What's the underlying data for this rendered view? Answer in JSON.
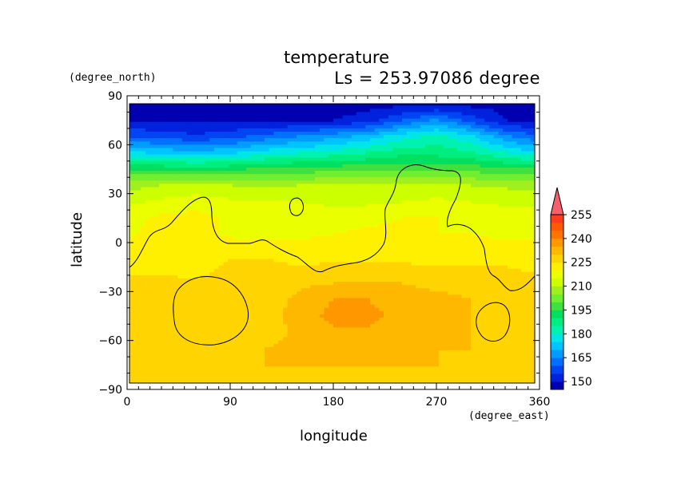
{
  "chart_data": {
    "type": "heatmap",
    "title": "temperature",
    "subtitle": "Ls = 253.97086 degree",
    "xlabel": "longitude",
    "ylabel": "latitude",
    "x_unit": "(degree_east)",
    "y_unit": "(degree_north)",
    "xlim": [
      0,
      360
    ],
    "ylim": [
      -90,
      90
    ],
    "x_ticks": [
      "0",
      "90",
      "180",
      "270",
      "360"
    ],
    "y_ticks": [
      "90",
      "60",
      "30",
      "0",
      "−30",
      "−60",
      "−90"
    ],
    "colorbar": {
      "levels": [
        145,
        150,
        155,
        160,
        165,
        170,
        175,
        180,
        185,
        190,
        195,
        200,
        205,
        210,
        215,
        220,
        225,
        230,
        235,
        240,
        245,
        250,
        255,
        260
      ],
      "labels": [
        "150",
        "165",
        "180",
        "195",
        "210",
        "225",
        "240",
        "255"
      ],
      "colors": [
        "#0000b0",
        "#0022dd",
        "#0044f2",
        "#0070ff",
        "#009cff",
        "#00c4ff",
        "#00e6e6",
        "#00f2b0",
        "#00ee80",
        "#00e060",
        "#40e040",
        "#70ee30",
        "#a0f020",
        "#ccff00",
        "#eaff00",
        "#fff000",
        "#ffd400",
        "#ffb800",
        "#ff9800",
        "#ff7400",
        "#ff5a00",
        "#ff3c1e",
        "#f5606a"
      ],
      "extend": "max"
    },
    "temperature_grid_K": {
      "latitudes": [
        85,
        75,
        65,
        55,
        45,
        35,
        25,
        15,
        5,
        -5,
        -15,
        -25,
        -35,
        -45,
        -55,
        -65,
        -75,
        -85
      ],
      "longitudes": [
        0,
        30,
        60,
        90,
        120,
        150,
        180,
        210,
        240,
        270,
        300,
        330,
        360
      ],
      "rows": [
        [
          148,
          148,
          148,
          148,
          148,
          148,
          148,
          148,
          148,
          148,
          148,
          148,
          148
        ],
        [
          149,
          149,
          149,
          149,
          149,
          149,
          150,
          152,
          160,
          166,
          158,
          150,
          149
        ],
        [
          160,
          158,
          156,
          158,
          162,
          165,
          168,
          172,
          178,
          182,
          176,
          166,
          160
        ],
        [
          176,
          174,
          172,
          174,
          178,
          180,
          182,
          185,
          188,
          188,
          186,
          180,
          176
        ],
        [
          195,
          194,
          193,
          194,
          196,
          197,
          198,
          198,
          199,
          199,
          198,
          196,
          195
        ],
        [
          208,
          210,
          211,
          210,
          209,
          210,
          210,
          210,
          211,
          212,
          210,
          209,
          208
        ],
        [
          214,
          216,
          218,
          216,
          215,
          215,
          214,
          214,
          215,
          216,
          215,
          214,
          214
        ],
        [
          218,
          221,
          222,
          219,
          218,
          218,
          218,
          219,
          220,
          220,
          219,
          218,
          218
        ],
        [
          219,
          222,
          222,
          219,
          218,
          219,
          220,
          221,
          221,
          220,
          220,
          219,
          219
        ],
        [
          222,
          222,
          221,
          224,
          224,
          223,
          222,
          222,
          222,
          222,
          222,
          222,
          222
        ],
        [
          224,
          224,
          223,
          226,
          226,
          225,
          226,
          226,
          226,
          225,
          225,
          225,
          224
        ],
        [
          226,
          226,
          226,
          226,
          227,
          229,
          230,
          230,
          230,
          229,
          229,
          228,
          226
        ],
        [
          226,
          226,
          226,
          227,
          228,
          231,
          235,
          235,
          232,
          231,
          230,
          229,
          226
        ],
        [
          226,
          226,
          226,
          227,
          229,
          231,
          237,
          237,
          233,
          231,
          230,
          229,
          226
        ],
        [
          226,
          226,
          226,
          226,
          228,
          231,
          234,
          234,
          232,
          231,
          230,
          229,
          227
        ],
        [
          226,
          226,
          226,
          228,
          230,
          231,
          231,
          231,
          231,
          230,
          230,
          229,
          228
        ],
        [
          226,
          226,
          226,
          229,
          230,
          230,
          230,
          230,
          230,
          230,
          229,
          229,
          228
        ],
        [
          226,
          226,
          226,
          228,
          229,
          229,
          229,
          229,
          229,
          229,
          229,
          229,
          228
        ]
      ]
    },
    "topography_contour": "black continent/topography outline"
  }
}
